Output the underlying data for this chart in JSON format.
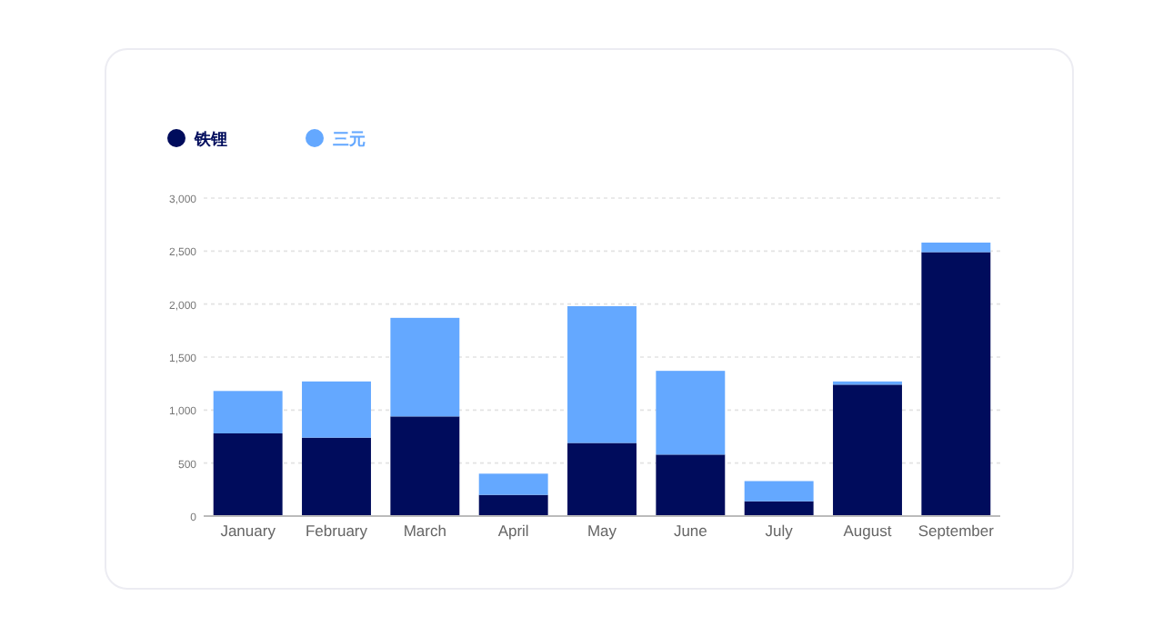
{
  "chart_data": {
    "type": "bar",
    "stacked": true,
    "categories": [
      "January",
      "February",
      "March",
      "April",
      "May",
      "June",
      "July",
      "August",
      "September"
    ],
    "series": [
      {
        "name": "铁锂",
        "color": "#000c5c",
        "values": [
          780,
          740,
          940,
          200,
          690,
          580,
          140,
          1240,
          2490
        ]
      },
      {
        "name": "三元",
        "color": "#64a8ff",
        "values": [
          400,
          530,
          930,
          200,
          1290,
          790,
          190,
          30,
          90
        ]
      }
    ],
    "ylim": [
      0,
      3000
    ],
    "yticks": [
      {
        "value": 0,
        "label": "0"
      },
      {
        "value": 500,
        "label": "500"
      },
      {
        "value": 1000,
        "label": "1,000"
      },
      {
        "value": 1500,
        "label": "1,500"
      },
      {
        "value": 2000,
        "label": "2,000"
      },
      {
        "value": 2500,
        "label": "2,500"
      },
      {
        "value": 3000,
        "label": "3,000"
      }
    ],
    "grid": "y",
    "legend": "top left"
  }
}
